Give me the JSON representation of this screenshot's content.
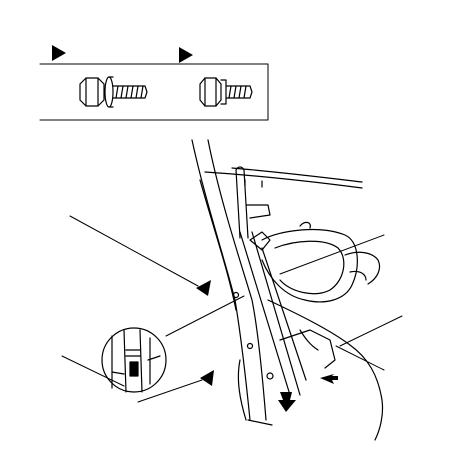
{
  "figure": {
    "background": "#ffffff",
    "ink": "#000000"
  },
  "legend_box": {
    "items": [
      {
        "marker": "triangle-marker",
        "fastener": "flange-bolt-with-washer"
      },
      {
        "marker": "triangle-marker",
        "fastener": "flange-bolt"
      }
    ]
  },
  "callouts": [
    {
      "name": "upper-left-leader",
      "target": "pillar-mount-bolt"
    },
    {
      "name": "upper-right-leader",
      "target": "regulator-channel"
    },
    {
      "name": "middle-right-leader",
      "target": "lower-bracket"
    },
    {
      "name": "lower-left-leader",
      "target": "clip-in-detail"
    },
    {
      "name": "bottom-left-leader",
      "target": "lower-mount-bolt"
    }
  ],
  "detail_view": {
    "shape": "circle",
    "content": "enlarged-clip-view"
  }
}
